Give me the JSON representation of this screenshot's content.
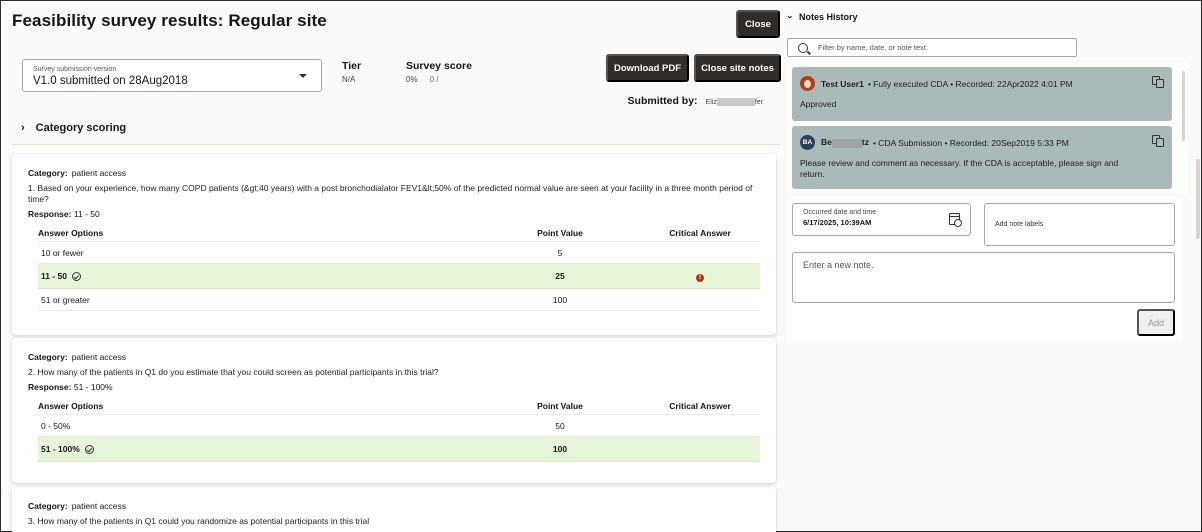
{
  "header": {
    "title": "Feasibility survey results: Regular site",
    "close_label": "Close",
    "download_pdf_label": "Download PDF",
    "close_site_notes_label": "Close site notes"
  },
  "summary": {
    "version_select": {
      "label": "Survey submission version",
      "value": "V1.0 submitted on 28Aug2018"
    },
    "tier": {
      "label": "Tier",
      "value": "N/A"
    },
    "survey_score": {
      "label": "Survey score",
      "percent": "0%",
      "fraction": "0 /"
    },
    "submitted_by": {
      "label": "Submitted by:",
      "value_start": "Eliz",
      "value_end": "fer"
    }
  },
  "category_scoring": {
    "label": "Category scoring",
    "expand_icon": "chevron-right-icon"
  },
  "table_headers": {
    "answer_options": "Answer Options",
    "point_value": "Point Value",
    "critical_answer": "Critical Answer"
  },
  "questions": [
    {
      "category_label": "Category:",
      "category": "patient access",
      "text": "1. Based on your experience, how many COPD patients (&gt;40 years) with a post bronchodialator FEV1&lt;50% of the predicted normal value are seen at your facility in a three month period of time?",
      "response_label": "Response:",
      "response": "11 - 50",
      "options": [
        {
          "label": "10 or fewer",
          "points": "5",
          "selected": false,
          "critical": false
        },
        {
          "label": "11 - 50",
          "points": "25",
          "selected": true,
          "critical": true
        },
        {
          "label": "51 or greater",
          "points": "100",
          "selected": false,
          "critical": false
        }
      ]
    },
    {
      "category_label": "Category:",
      "category": "patient access",
      "text": "2. How many of the patients in Q1 do you estimate that you could screen as potential participants in this trial?",
      "response_label": "Response:",
      "response": "51 - 100%",
      "options": [
        {
          "label": "0 - 50%",
          "points": "50",
          "selected": false,
          "critical": false
        },
        {
          "label": "51 - 100%",
          "points": "100",
          "selected": true,
          "critical": false
        }
      ]
    },
    {
      "category_label": "Category:",
      "category": "patient access",
      "text": "3. How many of the patients in Q1 could you randomize as potential participants in this trial"
    }
  ],
  "notes_panel": {
    "title": "Notes History",
    "filter_placeholder": "Filter by name, date, or note text.",
    "notes": [
      {
        "author": "Test User1",
        "label": "• Fully executed CDA •",
        "recorded": "Recorded: 22Apr2022 4:01 PM",
        "body": "Approved",
        "avatar": "photo"
      },
      {
        "author_start": "Be",
        "author_end": "tz",
        "initials": "BA",
        "label": "• CDA Submission •",
        "recorded": "Recorded: 20Sep2019 5:33 PM",
        "body": "Please review and comment as necessary. If the CDA is acceptable, please sign and return."
      }
    ],
    "form": {
      "date_label": "Occurred date and time",
      "date_value": "6/17/2025, 10:39AM",
      "labels_placeholder": "Add note labels",
      "note_placeholder": "Enter a new note.",
      "add_label": "Add"
    }
  },
  "colors": {
    "dark_button": "#312d2a",
    "selected_row": "#e6f4d8",
    "note_card": "#aabab8",
    "critical": "#b0391d"
  }
}
